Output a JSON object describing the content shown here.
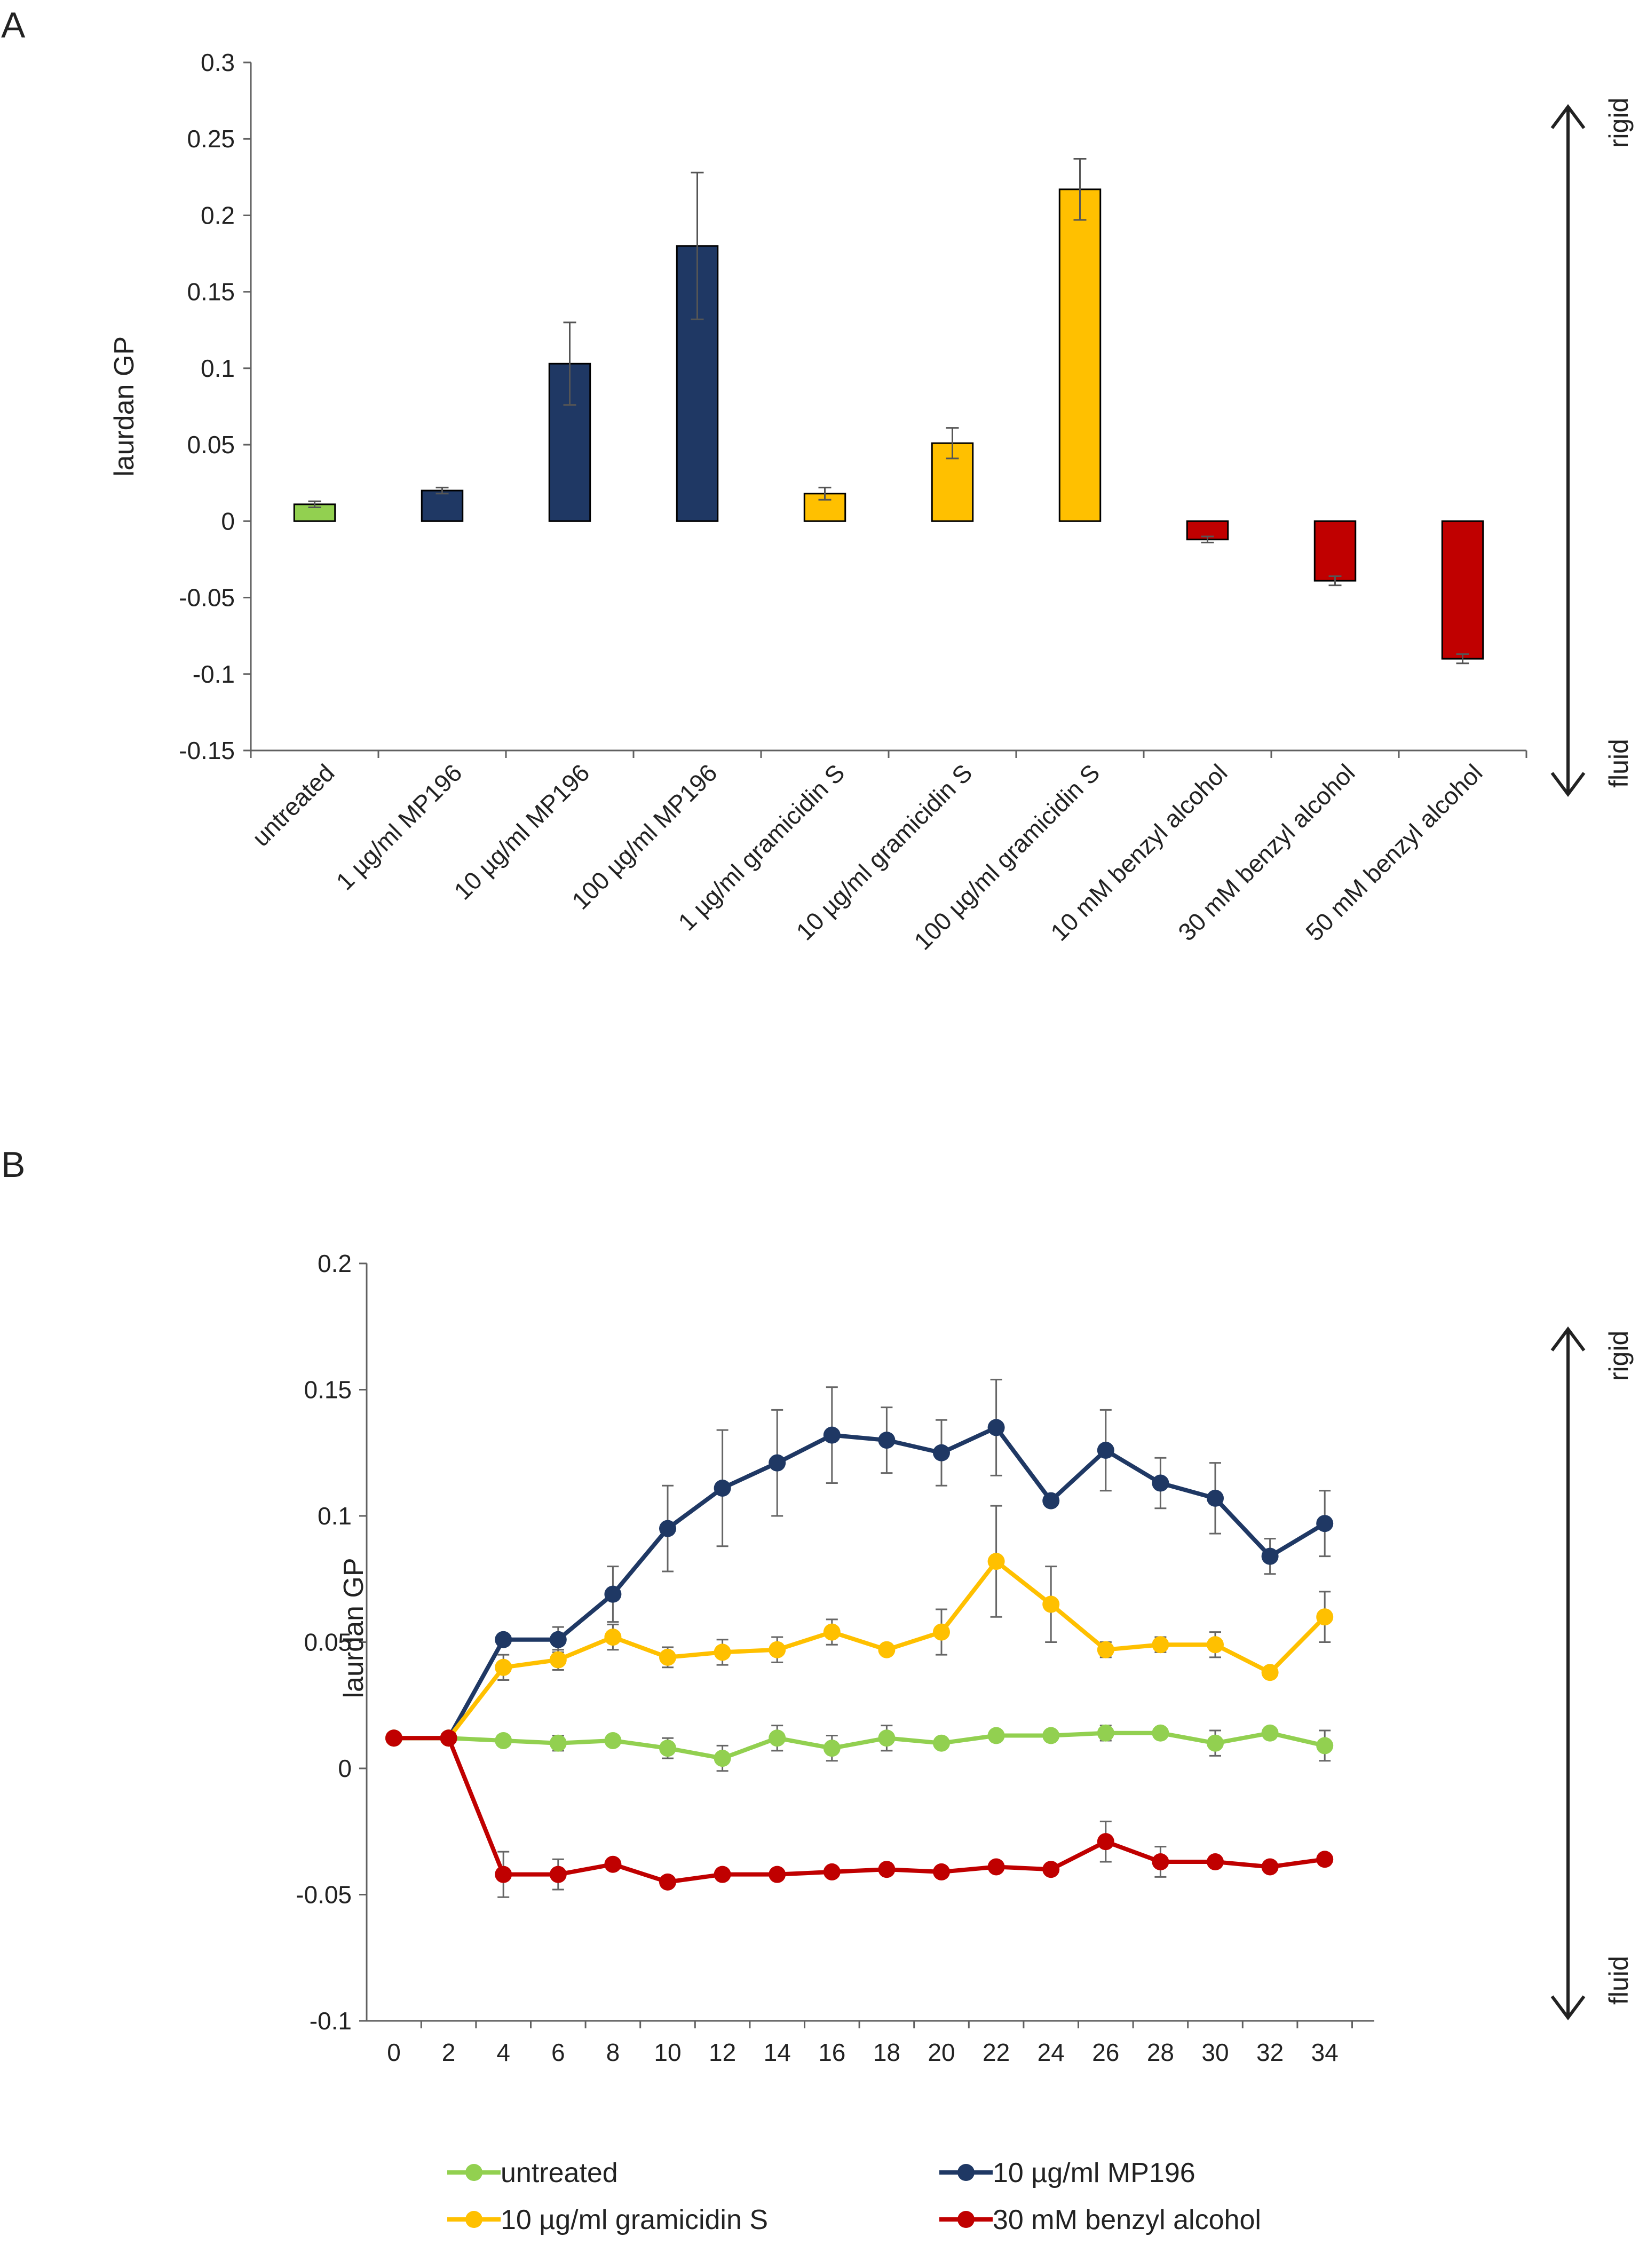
{
  "panels": {
    "a_label": "A",
    "b_label": "B"
  },
  "chart_data": [
    {
      "type": "bar",
      "title": "",
      "xlabel": "",
      "ylabel": "laurdan GP",
      "ylim": [
        -0.15,
        0.3
      ],
      "yticks": [
        "0.3",
        "0.25",
        "0.2",
        "0.15",
        "0.1",
        "0.05",
        "0",
        "-0.05",
        "-0.1",
        "-0.15"
      ],
      "categories": [
        "untreated",
        "1 µg/ml MP196",
        "10 µg/ml MP196",
        "100 µg/ml MP196",
        "1 µg/ml gramicidin S",
        "10 µg/ml gramicidin S",
        "100 µg/ml gramicidin S",
        "10 mM benzyl alcohol",
        "30 mM benzyl alcohol",
        "50 mM benzyl alcohol"
      ],
      "values": [
        0.011,
        0.02,
        0.103,
        0.18,
        0.018,
        0.051,
        0.217,
        -0.012,
        -0.039,
        -0.09
      ],
      "errors": [
        0.002,
        0.002,
        0.027,
        0.048,
        0.004,
        0.01,
        0.02,
        0.002,
        0.003,
        0.003
      ],
      "bar_colors": [
        "#92d050",
        "#1f3864",
        "#1f3864",
        "#1f3864",
        "#ffc000",
        "#ffc000",
        "#ffc000",
        "#c00000",
        "#c00000",
        "#c00000"
      ],
      "arrow_top_label": "rigid",
      "arrow_bottom_label": "fluid"
    },
    {
      "type": "line",
      "title": "",
      "xlabel": "",
      "ylabel": "laurdan GP",
      "ylim": [
        -0.1,
        0.2
      ],
      "yticks": [
        "0.2",
        "0.15",
        "0.1",
        "0.05",
        "0",
        "-0.05",
        "-0.1"
      ],
      "x": [
        0,
        2,
        4,
        6,
        8,
        10,
        12,
        14,
        16,
        18,
        20,
        22,
        24,
        26,
        28,
        30,
        32,
        34
      ],
      "xticks": [
        "0",
        "2",
        "4",
        "6",
        "8",
        "10",
        "12",
        "14",
        "16",
        "18",
        "20",
        "22",
        "24",
        "26",
        "28",
        "30",
        "32",
        "34"
      ],
      "series": [
        {
          "name": "10 µg/ml MP196",
          "color": "#1f3864",
          "values": [
            0.012,
            0.012,
            0.051,
            0.051,
            0.069,
            0.095,
            0.111,
            0.121,
            0.132,
            0.13,
            0.125,
            0.135,
            0.106,
            0.126,
            0.113,
            0.107,
            0.084,
            0.097
          ],
          "errors": [
            0,
            0,
            0.002,
            0.005,
            0.011,
            0.017,
            0.023,
            0.021,
            0.019,
            0.013,
            0.013,
            0.019,
            0,
            0.016,
            0.01,
            0.014,
            0.007,
            0.013
          ]
        },
        {
          "name": "10 µg/ml gramicidin S",
          "color": "#ffc000",
          "values": [
            0.012,
            0.012,
            0.04,
            0.043,
            0.052,
            0.044,
            0.046,
            0.047,
            0.054,
            0.047,
            0.054,
            0.082,
            0.065,
            0.047,
            0.049,
            0.049,
            0.038,
            0.06
          ],
          "errors": [
            0,
            0,
            0.005,
            0.004,
            0.005,
            0.004,
            0.005,
            0.005,
            0.005,
            0,
            0.009,
            0.022,
            0.015,
            0.003,
            0.003,
            0.005,
            0,
            0.01
          ]
        },
        {
          "name": "untreated",
          "color": "#92d050",
          "values": [
            0.012,
            0.012,
            0.011,
            0.01,
            0.011,
            0.008,
            0.004,
            0.012,
            0.008,
            0.012,
            0.01,
            0.013,
            0.013,
            0.014,
            0.014,
            0.01,
            0.014,
            0.009
          ],
          "errors": [
            0,
            0,
            0,
            0.003,
            0,
            0.004,
            0.005,
            0.005,
            0.005,
            0.005,
            0,
            0,
            0,
            0.003,
            0,
            0.005,
            0,
            0.006
          ]
        },
        {
          "name": "30 mM benzyl alcohol",
          "color": "#c00000",
          "values": [
            0.012,
            0.012,
            -0.042,
            -0.042,
            -0.038,
            -0.045,
            -0.042,
            -0.042,
            -0.041,
            -0.04,
            -0.041,
            -0.039,
            -0.04,
            -0.029,
            -0.037,
            -0.037,
            -0.039,
            -0.036
          ],
          "errors": [
            0,
            0,
            0.009,
            0.006,
            0,
            0,
            0,
            0,
            0,
            0,
            0,
            0,
            0,
            0.008,
            0.006,
            0,
            0,
            0
          ]
        }
      ],
      "arrow_top_label": "rigid",
      "arrow_bottom_label": "fluid"
    }
  ]
}
